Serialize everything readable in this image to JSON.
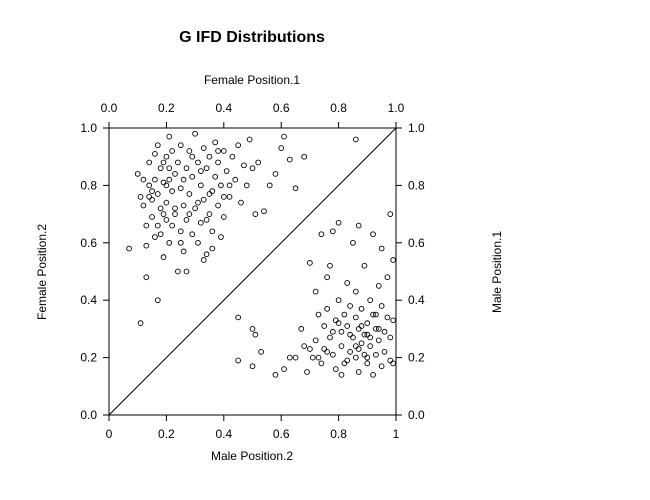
{
  "chart_data": {
    "type": "scatter",
    "title": "G IFD Distributions",
    "axes": {
      "bottom": {
        "label": "Male Position.2",
        "range": [
          0,
          1
        ],
        "ticks": [
          "0",
          "0.2",
          "0.4",
          "0.6",
          "0.8",
          "1"
        ]
      },
      "left": {
        "label": "Female Position.2",
        "range": [
          0,
          1
        ],
        "ticks": [
          "0.0",
          "0.2",
          "0.4",
          "0.6",
          "0.8",
          "1.0"
        ]
      },
      "top": {
        "label": "Female Position.1",
        "range": [
          0,
          1
        ],
        "ticks": [
          "0.0",
          "0.2",
          "0.4",
          "0.6",
          "0.8",
          "1.0"
        ]
      },
      "right": {
        "label": "Male Position.1",
        "range": [
          0,
          1
        ],
        "ticks": [
          "0.0",
          "0.2",
          "0.4",
          "0.6",
          "0.8",
          "1.0"
        ]
      }
    },
    "reference_line": {
      "from": [
        0,
        0
      ],
      "to": [
        1,
        1
      ]
    },
    "grid": false,
    "marker": "open-circle",
    "color": "#000000",
    "series": [
      {
        "points": [
          [
            0.07,
            0.58
          ],
          [
            0.1,
            0.84
          ],
          [
            0.11,
            0.76
          ],
          [
            0.11,
            0.32
          ],
          [
            0.12,
            0.73
          ],
          [
            0.12,
            0.82
          ],
          [
            0.13,
            0.66
          ],
          [
            0.13,
            0.59
          ],
          [
            0.13,
            0.48
          ],
          [
            0.14,
            0.8
          ],
          [
            0.14,
            0.88
          ],
          [
            0.15,
            0.75
          ],
          [
            0.15,
            0.69
          ],
          [
            0.16,
            0.91
          ],
          [
            0.16,
            0.62
          ],
          [
            0.16,
            0.82
          ],
          [
            0.17,
            0.77
          ],
          [
            0.17,
            0.94
          ],
          [
            0.17,
            0.4
          ],
          [
            0.18,
            0.72
          ],
          [
            0.18,
            0.63
          ],
          [
            0.18,
            0.86
          ],
          [
            0.19,
            0.81
          ],
          [
            0.19,
            0.88
          ],
          [
            0.19,
            0.55
          ],
          [
            0.2,
            0.68
          ],
          [
            0.2,
            0.9
          ],
          [
            0.2,
            0.74
          ],
          [
            0.21,
            0.97
          ],
          [
            0.21,
            0.82
          ],
          [
            0.21,
            0.6
          ],
          [
            0.22,
            0.78
          ],
          [
            0.22,
            0.66
          ],
          [
            0.22,
            0.92
          ],
          [
            0.23,
            0.84
          ],
          [
            0.23,
            0.7
          ],
          [
            0.24,
            0.5
          ],
          [
            0.24,
            0.88
          ],
          [
            0.25,
            0.64
          ],
          [
            0.25,
            0.79
          ],
          [
            0.25,
            0.94
          ],
          [
            0.26,
            0.73
          ],
          [
            0.26,
            0.57
          ],
          [
            0.27,
            0.86
          ],
          [
            0.27,
            0.68
          ],
          [
            0.28,
            0.92
          ],
          [
            0.28,
            0.77
          ],
          [
            0.29,
            0.63
          ],
          [
            0.29,
            0.83
          ],
          [
            0.3,
            0.98
          ],
          [
            0.3,
            0.72
          ],
          [
            0.31,
            0.88
          ],
          [
            0.31,
            0.6
          ],
          [
            0.32,
            0.8
          ],
          [
            0.32,
            0.67
          ],
          [
            0.33,
            0.93
          ],
          [
            0.33,
            0.75
          ],
          [
            0.34,
            0.86
          ],
          [
            0.34,
            0.56
          ],
          [
            0.35,
            0.7
          ],
          [
            0.35,
            0.9
          ],
          [
            0.36,
            0.78
          ],
          [
            0.36,
            0.64
          ],
          [
            0.37,
            0.95
          ],
          [
            0.37,
            0.83
          ],
          [
            0.38,
            0.73
          ],
          [
            0.38,
            0.88
          ],
          [
            0.39,
            0.62
          ],
          [
            0.39,
            0.8
          ],
          [
            0.4,
            0.92
          ],
          [
            0.4,
            0.69
          ],
          [
            0.41,
            0.85
          ],
          [
            0.42,
            0.76
          ],
          [
            0.43,
            0.9
          ],
          [
            0.44,
            0.82
          ],
          [
            0.45,
            0.94
          ],
          [
            0.46,
            0.74
          ],
          [
            0.47,
            0.87
          ],
          [
            0.48,
            0.8
          ],
          [
            0.49,
            0.96
          ],
          [
            0.5,
            0.86
          ],
          [
            0.51,
            0.7
          ],
          [
            0.52,
            0.88
          ],
          [
            0.54,
            0.71
          ],
          [
            0.56,
            0.8
          ],
          [
            0.58,
            0.84
          ],
          [
            0.6,
            0.93
          ],
          [
            0.61,
            0.97
          ],
          [
            0.63,
            0.89
          ],
          [
            0.65,
            0.79
          ],
          [
            0.68,
            0.9
          ],
          [
            0.86,
            0.96
          ],
          [
            0.14,
            0.76
          ],
          [
            0.2,
            0.8
          ],
          [
            0.26,
            0.82
          ],
          [
            0.32,
            0.85
          ],
          [
            0.35,
            0.77
          ],
          [
            0.23,
            0.72
          ],
          [
            0.17,
            0.66
          ],
          [
            0.29,
            0.9
          ],
          [
            0.38,
            0.92
          ],
          [
            0.42,
            0.8
          ],
          [
            0.27,
            0.5
          ],
          [
            0.33,
            0.54
          ],
          [
            0.25,
            0.6
          ],
          [
            0.19,
            0.7
          ],
          [
            0.31,
            0.74
          ],
          [
            0.36,
            0.58
          ],
          [
            0.15,
            0.78
          ],
          [
            0.21,
            0.86
          ],
          [
            0.28,
            0.7
          ],
          [
            0.34,
            0.68
          ],
          [
            0.4,
            0.76
          ],
          [
            0.45,
            0.34
          ],
          [
            0.5,
            0.3
          ],
          [
            0.51,
            0.28
          ],
          [
            0.53,
            0.22
          ],
          [
            0.45,
            0.19
          ],
          [
            0.5,
            0.17
          ],
          [
            0.58,
            0.14
          ],
          [
            0.61,
            0.16
          ],
          [
            0.63,
            0.2
          ],
          [
            0.65,
            0.2
          ],
          [
            0.67,
            0.3
          ],
          [
            0.68,
            0.24
          ],
          [
            0.69,
            0.15
          ],
          [
            0.7,
            0.53
          ],
          [
            0.71,
            0.2
          ],
          [
            0.72,
            0.43
          ],
          [
            0.72,
            0.26
          ],
          [
            0.73,
            0.35
          ],
          [
            0.74,
            0.63
          ],
          [
            0.74,
            0.18
          ],
          [
            0.75,
            0.31
          ],
          [
            0.75,
            0.23
          ],
          [
            0.76,
            0.37
          ],
          [
            0.76,
            0.48
          ],
          [
            0.77,
            0.27
          ],
          [
            0.77,
            0.52
          ],
          [
            0.78,
            0.21
          ],
          [
            0.78,
            0.64
          ],
          [
            0.79,
            0.33
          ],
          [
            0.79,
            0.16
          ],
          [
            0.8,
            0.67
          ],
          [
            0.8,
            0.4
          ],
          [
            0.81,
            0.29
          ],
          [
            0.81,
            0.24
          ],
          [
            0.82,
            0.35
          ],
          [
            0.82,
            0.18
          ],
          [
            0.83,
            0.46
          ],
          [
            0.83,
            0.31
          ],
          [
            0.84,
            0.22
          ],
          [
            0.84,
            0.38
          ],
          [
            0.85,
            0.27
          ],
          [
            0.85,
            0.6
          ],
          [
            0.86,
            0.34
          ],
          [
            0.86,
            0.2
          ],
          [
            0.86,
            0.43
          ],
          [
            0.87,
            0.3
          ],
          [
            0.87,
            0.15
          ],
          [
            0.87,
            0.66
          ],
          [
            0.88,
            0.25
          ],
          [
            0.88,
            0.37
          ],
          [
            0.89,
            0.21
          ],
          [
            0.89,
            0.52
          ],
          [
            0.9,
            0.32
          ],
          [
            0.9,
            0.28
          ],
          [
            0.9,
            0.18
          ],
          [
            0.91,
            0.4
          ],
          [
            0.91,
            0.24
          ],
          [
            0.92,
            0.35
          ],
          [
            0.92,
            0.14
          ],
          [
            0.92,
            0.63
          ],
          [
            0.93,
            0.3
          ],
          [
            0.93,
            0.21
          ],
          [
            0.94,
            0.45
          ],
          [
            0.94,
            0.26
          ],
          [
            0.95,
            0.17
          ],
          [
            0.95,
            0.38
          ],
          [
            0.95,
            0.58
          ],
          [
            0.96,
            0.29
          ],
          [
            0.96,
            0.22
          ],
          [
            0.97,
            0.34
          ],
          [
            0.97,
            0.48
          ],
          [
            0.98,
            0.19
          ],
          [
            0.98,
            0.27
          ],
          [
            0.98,
            0.7
          ],
          [
            0.99,
            0.33
          ],
          [
            0.99,
            0.54
          ],
          [
            0.99,
            0.18
          ],
          [
            0.81,
            0.14
          ],
          [
            0.84,
            0.28
          ],
          [
            0.88,
            0.31
          ],
          [
            0.91,
            0.27
          ],
          [
            0.86,
            0.24
          ],
          [
            0.83,
            0.19
          ],
          [
            0.9,
            0.2
          ],
          [
            0.93,
            0.35
          ],
          [
            0.87,
            0.23
          ],
          [
            0.89,
            0.28
          ],
          [
            0.94,
            0.3
          ],
          [
            0.8,
            0.32
          ],
          [
            0.78,
            0.29
          ],
          [
            0.76,
            0.22
          ],
          [
            0.73,
            0.2
          ],
          [
            0.7,
            0.23
          ]
        ]
      }
    ]
  }
}
